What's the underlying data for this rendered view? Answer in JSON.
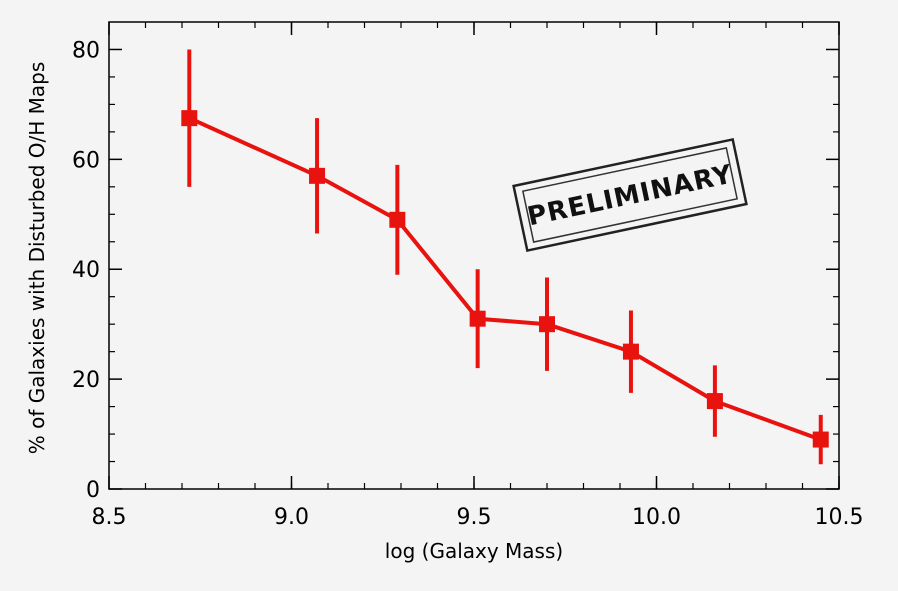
{
  "chart_data": {
    "type": "line",
    "title": "",
    "xlabel": "log (Galaxy Mass)",
    "ylabel": "% of Galaxies with Disturbed O/H Maps",
    "xlim": [
      8.5,
      10.5
    ],
    "ylim": [
      0,
      85
    ],
    "x_ticks": [
      "8.5",
      "9.0",
      "9.5",
      "10.0",
      "10.5"
    ],
    "y_ticks": [
      "0",
      "20",
      "40",
      "60",
      "80"
    ],
    "annotation": "PRELIMINARY",
    "series": [
      {
        "color": "#e8120f",
        "points": [
          {
            "x": 8.72,
            "y": 67.5,
            "err": 12.5
          },
          {
            "x": 9.07,
            "y": 57.0,
            "err": 10.5
          },
          {
            "x": 9.29,
            "y": 49.0,
            "err": 10.0
          },
          {
            "x": 9.51,
            "y": 31.0,
            "err": 9.0
          },
          {
            "x": 9.7,
            "y": 30.0,
            "err": 8.5
          },
          {
            "x": 9.93,
            "y": 25.0,
            "err": 7.5
          },
          {
            "x": 10.16,
            "y": 16.0,
            "err": 6.5
          },
          {
            "x": 10.45,
            "y": 9.0,
            "err": 4.5
          }
        ]
      }
    ]
  }
}
